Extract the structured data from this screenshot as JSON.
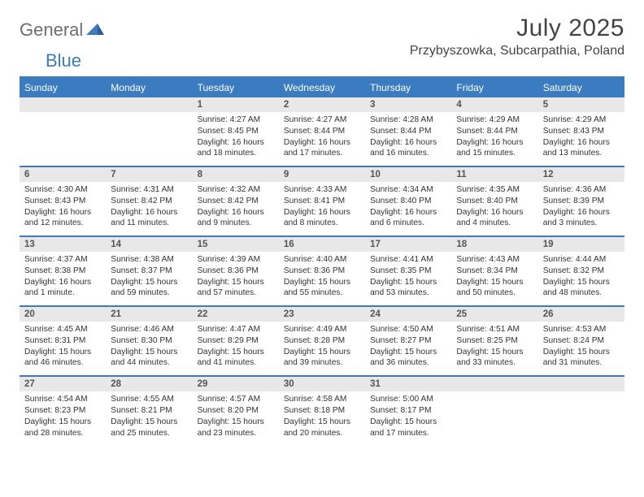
{
  "logo": {
    "text1": "General",
    "text2": "Blue"
  },
  "title": "July 2025",
  "location": "Przybyszowka, Subcarpathia, Poland",
  "colors": {
    "brand_blue": "#3b7bbf",
    "header_bg": "#3b7bbf",
    "header_fg": "#ffffff",
    "daynum_bg": "#e8e8e8",
    "daynum_fg": "#555555",
    "body_text": "#333333",
    "logo_gray": "#6d6e71",
    "divider": "#3b7bbf"
  },
  "day_names": [
    "Sunday",
    "Monday",
    "Tuesday",
    "Wednesday",
    "Thursday",
    "Friday",
    "Saturday"
  ],
  "weeks": [
    [
      null,
      null,
      {
        "n": "1",
        "sunrise": "4:27 AM",
        "sunset": "8:45 PM",
        "daylight": "16 hours and 18 minutes."
      },
      {
        "n": "2",
        "sunrise": "4:27 AM",
        "sunset": "8:44 PM",
        "daylight": "16 hours and 17 minutes."
      },
      {
        "n": "3",
        "sunrise": "4:28 AM",
        "sunset": "8:44 PM",
        "daylight": "16 hours and 16 minutes."
      },
      {
        "n": "4",
        "sunrise": "4:29 AM",
        "sunset": "8:44 PM",
        "daylight": "16 hours and 15 minutes."
      },
      {
        "n": "5",
        "sunrise": "4:29 AM",
        "sunset": "8:43 PM",
        "daylight": "16 hours and 13 minutes."
      }
    ],
    [
      {
        "n": "6",
        "sunrise": "4:30 AM",
        "sunset": "8:43 PM",
        "daylight": "16 hours and 12 minutes."
      },
      {
        "n": "7",
        "sunrise": "4:31 AM",
        "sunset": "8:42 PM",
        "daylight": "16 hours and 11 minutes."
      },
      {
        "n": "8",
        "sunrise": "4:32 AM",
        "sunset": "8:42 PM",
        "daylight": "16 hours and 9 minutes."
      },
      {
        "n": "9",
        "sunrise": "4:33 AM",
        "sunset": "8:41 PM",
        "daylight": "16 hours and 8 minutes."
      },
      {
        "n": "10",
        "sunrise": "4:34 AM",
        "sunset": "8:40 PM",
        "daylight": "16 hours and 6 minutes."
      },
      {
        "n": "11",
        "sunrise": "4:35 AM",
        "sunset": "8:40 PM",
        "daylight": "16 hours and 4 minutes."
      },
      {
        "n": "12",
        "sunrise": "4:36 AM",
        "sunset": "8:39 PM",
        "daylight": "16 hours and 3 minutes."
      }
    ],
    [
      {
        "n": "13",
        "sunrise": "4:37 AM",
        "sunset": "8:38 PM",
        "daylight": "16 hours and 1 minute."
      },
      {
        "n": "14",
        "sunrise": "4:38 AM",
        "sunset": "8:37 PM",
        "daylight": "15 hours and 59 minutes."
      },
      {
        "n": "15",
        "sunrise": "4:39 AM",
        "sunset": "8:36 PM",
        "daylight": "15 hours and 57 minutes."
      },
      {
        "n": "16",
        "sunrise": "4:40 AM",
        "sunset": "8:36 PM",
        "daylight": "15 hours and 55 minutes."
      },
      {
        "n": "17",
        "sunrise": "4:41 AM",
        "sunset": "8:35 PM",
        "daylight": "15 hours and 53 minutes."
      },
      {
        "n": "18",
        "sunrise": "4:43 AM",
        "sunset": "8:34 PM",
        "daylight": "15 hours and 50 minutes."
      },
      {
        "n": "19",
        "sunrise": "4:44 AM",
        "sunset": "8:32 PM",
        "daylight": "15 hours and 48 minutes."
      }
    ],
    [
      {
        "n": "20",
        "sunrise": "4:45 AM",
        "sunset": "8:31 PM",
        "daylight": "15 hours and 46 minutes."
      },
      {
        "n": "21",
        "sunrise": "4:46 AM",
        "sunset": "8:30 PM",
        "daylight": "15 hours and 44 minutes."
      },
      {
        "n": "22",
        "sunrise": "4:47 AM",
        "sunset": "8:29 PM",
        "daylight": "15 hours and 41 minutes."
      },
      {
        "n": "23",
        "sunrise": "4:49 AM",
        "sunset": "8:28 PM",
        "daylight": "15 hours and 39 minutes."
      },
      {
        "n": "24",
        "sunrise": "4:50 AM",
        "sunset": "8:27 PM",
        "daylight": "15 hours and 36 minutes."
      },
      {
        "n": "25",
        "sunrise": "4:51 AM",
        "sunset": "8:25 PM",
        "daylight": "15 hours and 33 minutes."
      },
      {
        "n": "26",
        "sunrise": "4:53 AM",
        "sunset": "8:24 PM",
        "daylight": "15 hours and 31 minutes."
      }
    ],
    [
      {
        "n": "27",
        "sunrise": "4:54 AM",
        "sunset": "8:23 PM",
        "daylight": "15 hours and 28 minutes."
      },
      {
        "n": "28",
        "sunrise": "4:55 AM",
        "sunset": "8:21 PM",
        "daylight": "15 hours and 25 minutes."
      },
      {
        "n": "29",
        "sunrise": "4:57 AM",
        "sunset": "8:20 PM",
        "daylight": "15 hours and 23 minutes."
      },
      {
        "n": "30",
        "sunrise": "4:58 AM",
        "sunset": "8:18 PM",
        "daylight": "15 hours and 20 minutes."
      },
      {
        "n": "31",
        "sunrise": "5:00 AM",
        "sunset": "8:17 PM",
        "daylight": "15 hours and 17 minutes."
      },
      null,
      null
    ]
  ],
  "labels": {
    "sunrise": "Sunrise: ",
    "sunset": "Sunset: ",
    "daylight": "Daylight: "
  }
}
